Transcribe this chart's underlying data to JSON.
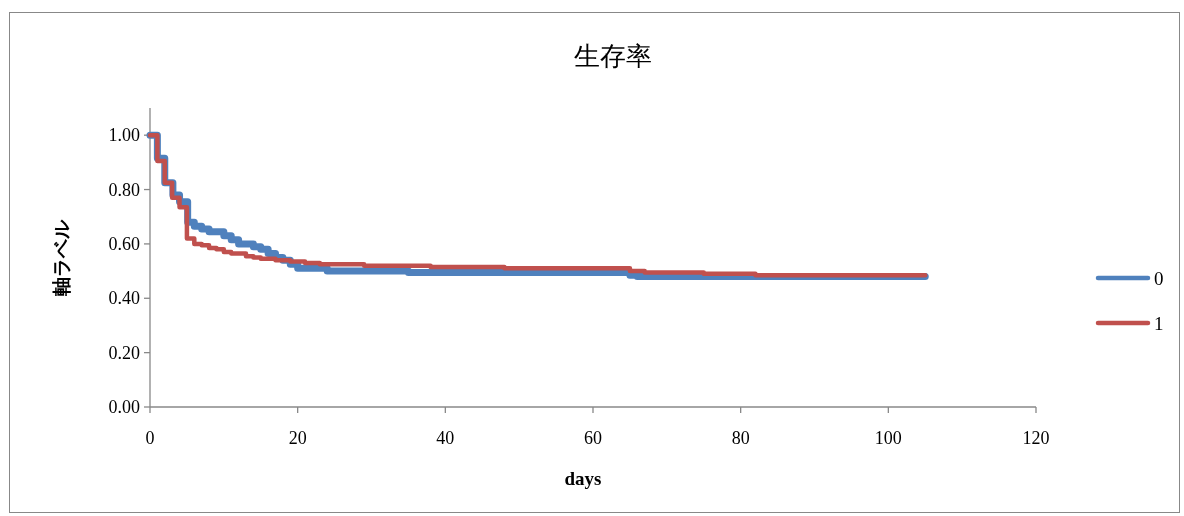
{
  "chart_data": {
    "type": "step",
    "title": "生存率",
    "xlabel": "days",
    "ylabel": "軸ラベル",
    "xlim": [
      0,
      120
    ],
    "ylim": [
      0,
      1.1
    ],
    "xticks": [
      0,
      20,
      40,
      60,
      80,
      100,
      120
    ],
    "yticks": [
      {
        "value": 0,
        "label": "0.00"
      },
      {
        "value": 0.2,
        "label": "0.20"
      },
      {
        "value": 0.4,
        "label": "0.40"
      },
      {
        "value": 0.6,
        "label": "0.60"
      },
      {
        "value": 0.8,
        "label": "0.80"
      },
      {
        "value": 1,
        "label": "1.00"
      }
    ],
    "legend": "right",
    "series": [
      {
        "name": "0",
        "color": "#4f81bd",
        "x": [
          0,
          1,
          2,
          3.1,
          4,
          5.1,
          6,
          7,
          8,
          10,
          11,
          12,
          14,
          15,
          16,
          17,
          18,
          19,
          20,
          24,
          35,
          65,
          66,
          105
        ],
        "values": [
          1.0,
          0.915,
          0.825,
          0.78,
          0.755,
          0.68,
          0.665,
          0.655,
          0.645,
          0.63,
          0.615,
          0.6,
          0.59,
          0.58,
          0.565,
          0.55,
          0.54,
          0.525,
          0.51,
          0.5,
          0.495,
          0.485,
          0.48,
          0.48
        ]
      },
      {
        "name": "1",
        "color": "#c0504d",
        "x": [
          0,
          1,
          2,
          3,
          4,
          5,
          6,
          7,
          8,
          9,
          10,
          11,
          13,
          14,
          15,
          17,
          19,
          21,
          23,
          29,
          38,
          48,
          65,
          67,
          75,
          82,
          105
        ],
        "values": [
          1.0,
          0.905,
          0.825,
          0.77,
          0.735,
          0.62,
          0.6,
          0.595,
          0.585,
          0.58,
          0.57,
          0.565,
          0.555,
          0.55,
          0.545,
          0.54,
          0.535,
          0.53,
          0.525,
          0.52,
          0.515,
          0.51,
          0.5,
          0.495,
          0.49,
          0.485,
          0.485
        ]
      }
    ]
  }
}
